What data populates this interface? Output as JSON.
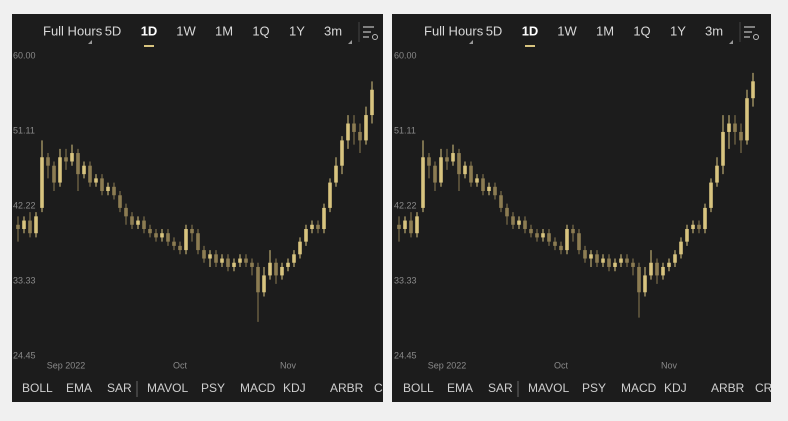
{
  "panels": [
    {
      "tabs": [
        "Full Hours",
        "5D",
        "1D",
        "1W",
        "1M",
        "1Q",
        "1Y",
        "3m"
      ],
      "active": 2,
      "indicators": [
        "BOLL",
        "EMA",
        "SAR",
        "MAVOL",
        "PSY",
        "MACD",
        "KDJ",
        "ARBR",
        "CR"
      ]
    },
    {
      "tabs": [
        "Full Hours",
        "5D",
        "1D",
        "1W",
        "1M",
        "1Q",
        "1Y",
        "3m"
      ],
      "active": 2,
      "indicators": [
        "BOLL",
        "EMA",
        "SAR",
        "MAVOL",
        "PSY",
        "MACD",
        "KDJ",
        "ARBR",
        "CR"
      ]
    }
  ],
  "chart_data": [
    {
      "type": "candlestick",
      "up_color": "#d8c47f",
      "down_color": "#8c7c52",
      "grid": false,
      "categories": [
        null,
        null,
        null,
        null,
        null,
        null,
        null,
        null,
        "Sep 2022",
        null,
        null,
        null,
        null,
        null,
        null,
        null,
        null,
        null,
        null,
        null,
        null,
        null,
        null,
        null,
        null,
        null,
        null,
        "Oct",
        null,
        null,
        null,
        null,
        null,
        null,
        null,
        null,
        null,
        null,
        null,
        null,
        null,
        null,
        null,
        null,
        null,
        "Nov",
        null,
        null,
        null,
        null,
        null,
        null,
        null,
        null,
        null,
        null,
        null,
        null,
        null,
        null
      ],
      "open": [
        40,
        39.5,
        40.5,
        39,
        42,
        48,
        47,
        45,
        48,
        47.5,
        48.5,
        46,
        47,
        45,
        45.5,
        44,
        44.5,
        43.5,
        42,
        41,
        40,
        40.5,
        39.5,
        39,
        38.5,
        39,
        38,
        37.5,
        37,
        39.5,
        39,
        37,
        36,
        36.5,
        35.5,
        36,
        35,
        35.5,
        36,
        35.5,
        35,
        32,
        34,
        35.5,
        34,
        35,
        35.5,
        36.5,
        38,
        39.5,
        40,
        39.5,
        42,
        45,
        47,
        50,
        52,
        51,
        50,
        53
      ],
      "high": [
        41,
        41,
        41.5,
        41.5,
        50,
        48.5,
        47.5,
        49,
        49,
        49.5,
        49,
        47.5,
        47.5,
        46,
        46,
        45,
        45,
        44,
        42.5,
        41.5,
        41,
        41,
        40,
        39.5,
        39.5,
        39.5,
        38.5,
        38,
        40,
        40,
        39.5,
        37.5,
        37,
        37,
        36.5,
        36.5,
        36,
        36.5,
        36.5,
        36,
        35.5,
        35,
        37,
        36,
        35.5,
        36,
        37,
        38.5,
        40,
        40.5,
        40.5,
        42.5,
        45.5,
        48,
        50.5,
        53,
        53,
        52,
        54,
        57
      ],
      "low": [
        38,
        39,
        38.5,
        38.5,
        41.5,
        45.5,
        44,
        44.5,
        46.5,
        47,
        44,
        45.5,
        44.5,
        44.5,
        43.5,
        43.5,
        43,
        41.5,
        40,
        39.5,
        39.5,
        39,
        38.5,
        38,
        38,
        37.5,
        37,
        36.5,
        36.5,
        38,
        36.5,
        35.5,
        35,
        35,
        35,
        34.5,
        34.5,
        35,
        35,
        34,
        28.5,
        31.5,
        33.5,
        33,
        33.5,
        34.5,
        35,
        36,
        37.5,
        39,
        39,
        39,
        41.5,
        44.5,
        46,
        49,
        49.5,
        48.5,
        49.5,
        52
      ],
      "close": [
        39.5,
        40.5,
        39,
        41,
        48,
        47,
        45,
        48,
        47.5,
        48.5,
        46,
        47,
        45,
        45.5,
        44,
        44.5,
        43.5,
        42,
        41,
        40,
        40.5,
        39.5,
        39,
        38.5,
        39,
        38,
        37.5,
        37,
        39.5,
        39,
        37,
        36,
        36.5,
        35.5,
        36,
        35,
        35.5,
        36,
        35.5,
        35,
        32,
        34,
        35.5,
        34,
        35,
        35.5,
        36.5,
        38,
        39.5,
        40,
        39.5,
        42,
        45,
        47,
        50,
        52,
        51,
        50,
        53,
        56
      ],
      "ylim": [
        24.45,
        60
      ],
      "yticks": [
        {
          "value": 60,
          "label": "60.00"
        },
        51.11,
        42.22,
        33.33,
        24.45
      ]
    },
    {
      "type": "candlestick",
      "up_color": "#d8c47f",
      "down_color": "#8c7c52",
      "grid": false,
      "categories": [
        null,
        null,
        null,
        null,
        null,
        null,
        null,
        null,
        "Sep 2022",
        null,
        null,
        null,
        null,
        null,
        null,
        null,
        null,
        null,
        null,
        null,
        null,
        null,
        null,
        null,
        null,
        null,
        null,
        "Oct",
        null,
        null,
        null,
        null,
        null,
        null,
        null,
        null,
        null,
        null,
        null,
        null,
        null,
        null,
        null,
        null,
        null,
        "Nov",
        null,
        null,
        null,
        null,
        null,
        null,
        null,
        null,
        null,
        null,
        null,
        null,
        null,
        null
      ],
      "open": [
        40,
        39.5,
        40.5,
        39,
        42,
        48,
        47,
        45,
        48,
        47.5,
        48.5,
        46,
        47,
        45,
        45.5,
        44,
        44.5,
        43.5,
        42,
        41,
        40,
        40.5,
        39.5,
        39,
        38.5,
        39,
        38,
        37.5,
        37,
        39.5,
        39,
        37,
        36,
        36.5,
        35.5,
        36,
        35,
        35.5,
        36,
        35.5,
        35,
        32,
        34,
        35.5,
        34,
        35,
        35.5,
        36.5,
        38,
        39.5,
        40,
        39.5,
        42,
        45,
        47,
        51,
        52,
        51,
        50,
        55
      ],
      "high": [
        41,
        41,
        41.5,
        41.5,
        50,
        48.5,
        47.5,
        49,
        49,
        49.5,
        49,
        47.5,
        47.5,
        46,
        46,
        45,
        45,
        44,
        42.5,
        41.5,
        41,
        41,
        40,
        39.5,
        39.5,
        39.5,
        38.5,
        38,
        40,
        40,
        39.5,
        37.5,
        37,
        37,
        36.5,
        36.5,
        36,
        36.5,
        36.5,
        36,
        35.5,
        35,
        37,
        36,
        35.5,
        36,
        37,
        38.5,
        40,
        40.5,
        40.5,
        42.5,
        45.5,
        48,
        53,
        53,
        53,
        52,
        56,
        58
      ],
      "low": [
        38,
        39,
        38.5,
        38.5,
        41.5,
        45.5,
        44,
        44.5,
        46.5,
        47,
        44,
        45.5,
        44.5,
        44.5,
        43.5,
        43.5,
        43,
        41.5,
        40,
        39.5,
        39.5,
        39,
        38.5,
        38,
        38,
        37.5,
        37,
        36.5,
        36.5,
        38,
        36.5,
        35.5,
        35,
        35,
        35,
        34.5,
        34.5,
        35,
        35,
        34,
        29,
        31.5,
        33.5,
        33,
        33.5,
        34.5,
        35,
        36,
        37.5,
        39,
        39,
        39,
        41.5,
        44.5,
        46,
        49,
        49.5,
        48.5,
        49.5,
        54
      ],
      "close": [
        39.5,
        40.5,
        39,
        41,
        48,
        47,
        45,
        48,
        47.5,
        48.5,
        46,
        47,
        45,
        45.5,
        44,
        44.5,
        43.5,
        42,
        41,
        40,
        40.5,
        39.5,
        39,
        38.5,
        39,
        38,
        37.5,
        37,
        39.5,
        39,
        37,
        36,
        36.5,
        35.5,
        36,
        35,
        35.5,
        36,
        35.5,
        35,
        32,
        34,
        35.5,
        34,
        35,
        35.5,
        36.5,
        38,
        39.5,
        40,
        39.5,
        42,
        45,
        47,
        51,
        52,
        51,
        50,
        55,
        57
      ],
      "ylim": [
        24.45,
        60
      ],
      "yticks": [
        {
          "value": 60,
          "label": "60.00"
        },
        51.11,
        42.22,
        33.33,
        24.45
      ]
    }
  ]
}
